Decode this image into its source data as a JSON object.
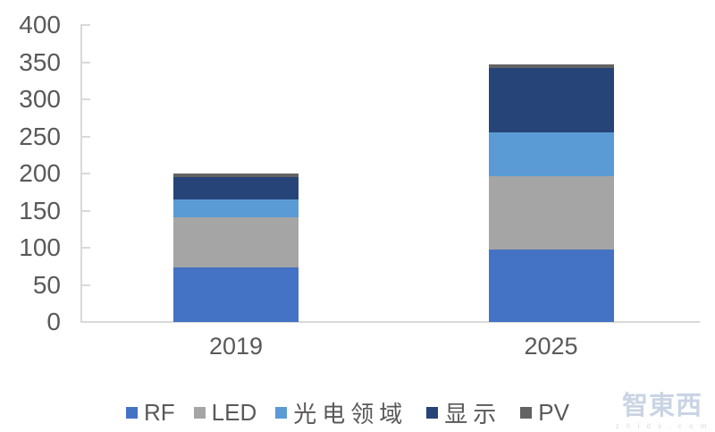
{
  "chart_data": {
    "type": "bar",
    "stacked": true,
    "title": "",
    "xlabel": "",
    "ylabel": "",
    "categories": [
      "2019",
      "2025"
    ],
    "series": [
      {
        "name": "RF",
        "color": "#4472c4",
        "values": [
          73,
          98
        ]
      },
      {
        "name": "LED",
        "color": "#a5a5a5",
        "values": [
          68,
          99
        ]
      },
      {
        "name": "光电领域",
        "color": "#5b9bd5",
        "values": [
          24,
          58
        ]
      },
      {
        "name": "显示",
        "color": "#264478",
        "values": [
          30,
          87
        ]
      },
      {
        "name": "PV",
        "color": "#636363",
        "values": [
          5,
          5
        ]
      }
    ],
    "totals": [
      200,
      347
    ],
    "ylim": [
      0,
      400
    ],
    "yticks": [
      0,
      50,
      100,
      150,
      200,
      250,
      300,
      350,
      400
    ],
    "grid": false,
    "legend_position": "bottom"
  },
  "axis": {
    "line_color": "#d9d9d9",
    "label_color": "#595959"
  },
  "watermark": {
    "text": "智東西",
    "subtext": "z h i d x . c o m",
    "color": "#b7c6dc"
  }
}
